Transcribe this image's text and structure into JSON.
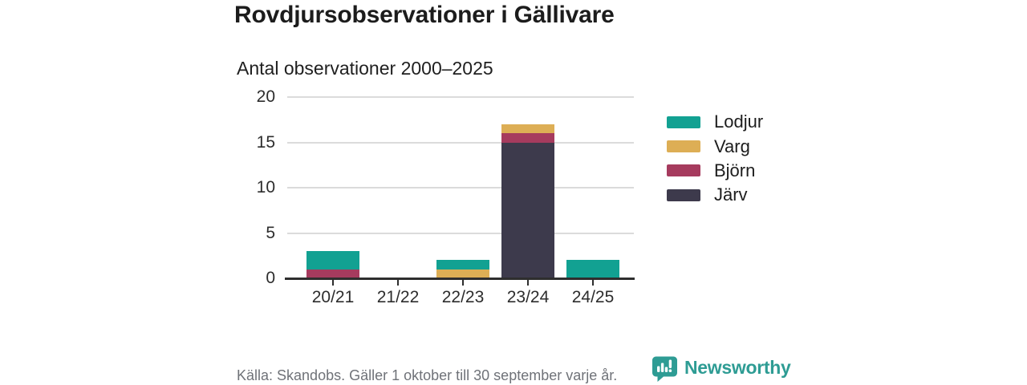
{
  "header": {
    "title": "Rovdjursobservationer i Gällivare",
    "subtitle": "Antal observationer 2000–2025"
  },
  "chart_data": {
    "type": "bar",
    "stacked": true,
    "title": "Rovdjursobservationer i Gällivare",
    "subtitle": "Antal observationer 2000–2025",
    "categories": [
      "20/21",
      "21/22",
      "22/23",
      "23/24",
      "24/25"
    ],
    "series": [
      {
        "name": "Lodjur",
        "color": "#12a192",
        "values": [
          2,
          0,
          1,
          0,
          2
        ]
      },
      {
        "name": "Varg",
        "color": "#ddae55",
        "values": [
          0,
          0,
          1,
          1,
          0
        ]
      },
      {
        "name": "Björn",
        "color": "#a63b5e",
        "values": [
          1,
          0,
          0,
          1,
          0
        ]
      },
      {
        "name": "Järv",
        "color": "#3d3a4c",
        "values": [
          0,
          0,
          0,
          15,
          0
        ]
      }
    ],
    "stack_order_bottom_to_top": [
      "Järv",
      "Björn",
      "Varg",
      "Lodjur"
    ],
    "totals": [
      3,
      0,
      2,
      17,
      2
    ],
    "y_ticks": [
      0,
      5,
      10,
      15,
      20
    ],
    "ylim": [
      0,
      20
    ],
    "xlabel": "",
    "ylabel": "",
    "grid": "horizontal",
    "legend_position": "right"
  },
  "footer": {
    "source": "Källa: Skandobs. Gäller 1 oktober till 30 september varje år.",
    "brand": "Newsworthy",
    "brand_color": "#2e9c94"
  },
  "colors": {
    "axis": "#2e2e2e",
    "gridline": "#dbdbdb",
    "text_dark": "#1c1c1c",
    "text_muted": "#6f7278"
  }
}
